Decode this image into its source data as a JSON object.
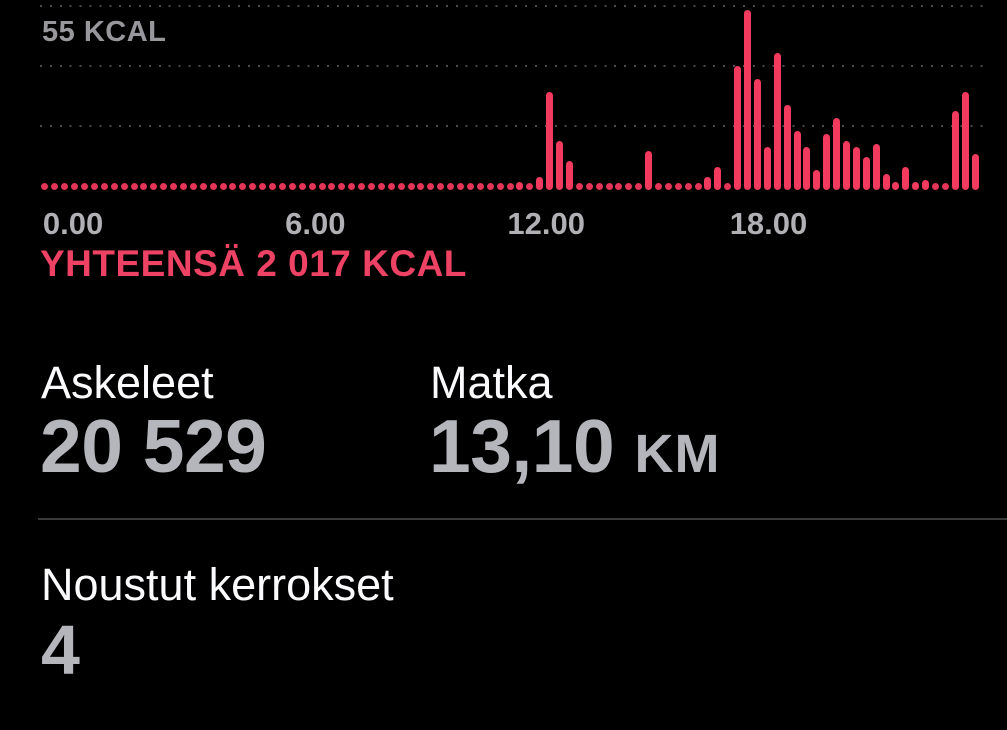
{
  "colors": {
    "background": "#000000",
    "bar": "#f23a5e",
    "baseline_dot": "#e23557",
    "gridline": "#4a4a4f",
    "axis_text": "#b0b0b5",
    "max_label_text": "#97979c",
    "total_text": "#ed4263",
    "stat_label_text": "#fbfbfd",
    "stat_value_text": "#b4b6bb"
  },
  "chart_data": {
    "type": "bar",
    "title": "",
    "ylabel": "KCAL",
    "unit": "KCAL",
    "y_max": 55,
    "max_label": "55 KCAL",
    "total_label": "YHTEENSÄ 2 017 KCAL",
    "total_kcal": 2017,
    "slots": 96,
    "interval_minutes": 15,
    "x_tick_labels": [
      "0.00",
      "6.00",
      "12.00",
      "18.00"
    ],
    "grid": "dotted",
    "legend": "none",
    "values": [
      0,
      0,
      0,
      0,
      0,
      0,
      0,
      0,
      0,
      0,
      0,
      0,
      0,
      0,
      0,
      0,
      0,
      0,
      0,
      0,
      0,
      0,
      0,
      0,
      0,
      0,
      0,
      0,
      0,
      0,
      0,
      0,
      0,
      0,
      0,
      0,
      0,
      0,
      0,
      0,
      0,
      0,
      0,
      0,
      0,
      0,
      0,
      0,
      2,
      0,
      4,
      30,
      15,
      9,
      0,
      0,
      0,
      0,
      0,
      0,
      0,
      12,
      0,
      0,
      0,
      0,
      0,
      4,
      7,
      0,
      38,
      55,
      34,
      13,
      42,
      26,
      18,
      13,
      6,
      17,
      22,
      15,
      13,
      10,
      14,
      5,
      2,
      7,
      2,
      3,
      0,
      0,
      24,
      30,
      11,
      null
    ]
  },
  "stats": {
    "steps": {
      "label": "Askeleet",
      "value": "20 529"
    },
    "distance": {
      "label": "Matka",
      "value": "13,10",
      "unit": "KM"
    },
    "floors": {
      "label": "Noustut kerrokset",
      "value": "4"
    }
  }
}
